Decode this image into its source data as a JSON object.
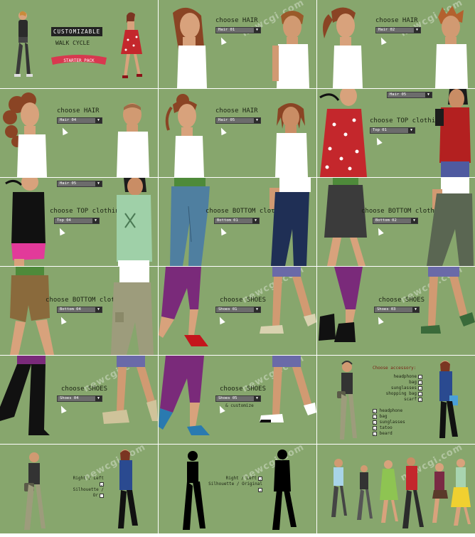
{
  "intro": {
    "badge": "CUSTOMIZABLE",
    "subtitle": "WALK CYCLE",
    "ribbon": "STARTER PACK"
  },
  "watermark": "newcgi.com",
  "tiles": [
    {
      "heading": "choose HAIR",
      "select": "Hair 01"
    },
    {
      "heading": "choose HAIR",
      "select": "Hair 02"
    },
    {
      "heading": "choose HAIR",
      "select": "Hair 04"
    },
    {
      "heading": "choose HAIR",
      "select": "Hair 05"
    },
    {
      "heading": "choose TOP clothing",
      "select": "Top 01",
      "extra_select": "Hair 05"
    },
    {
      "heading": "choose TOP clothing",
      "select": "Top 04",
      "extra_select": "Hair 05"
    },
    {
      "heading": "choose BOTTOM clothing",
      "select": "Bottom 01"
    },
    {
      "heading": "choose BOTTOM clothing",
      "select": "Bottom 02"
    },
    {
      "heading": "choose BOTTOM clothing",
      "select": "Bottom 04"
    },
    {
      "heading": "choose SHOES",
      "select": "Shoes 01"
    },
    {
      "heading": "choose SHOES",
      "select": "Shoes 03"
    },
    {
      "heading": "choose SHOES",
      "select": "Shoes 04"
    },
    {
      "heading": "choose SHOES",
      "select": "Shoes 05",
      "note": "& customize"
    }
  ],
  "accessory": {
    "title": "Choose accessory:",
    "right_list": [
      "headphone",
      "bag",
      "sunglasses",
      "shopping bag",
      "scarf"
    ],
    "left_list": [
      "headphone",
      "bag",
      "sunglasses",
      "tatoo",
      "beard"
    ]
  },
  "toggles": [
    {
      "line1": "Right / Left",
      "line2": "Silhouette / Or"
    },
    {
      "line1": "Right / Left",
      "line2": "Silhouette / Original"
    }
  ],
  "colors": {
    "background": "#87a66d",
    "dropdown": "#6c6c6c",
    "text": "#1c2414",
    "ribbon": "#d8384f",
    "accessory_title": "#7a2216"
  }
}
